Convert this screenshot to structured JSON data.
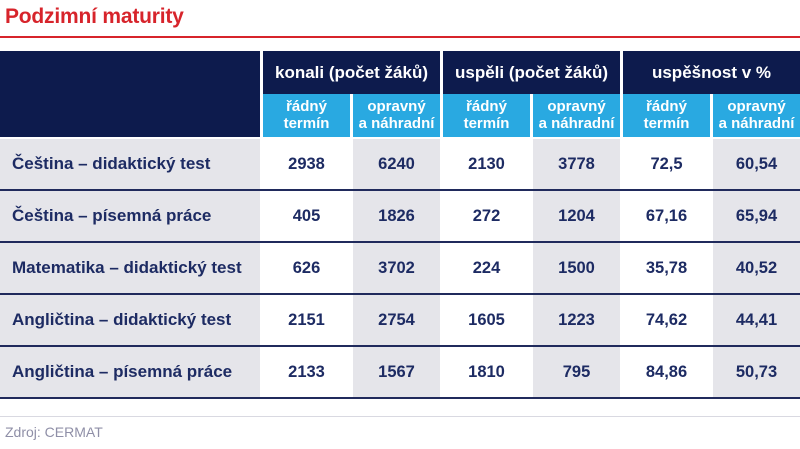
{
  "title": "Podzimní maturity",
  "source": "Zdroj: CERMAT",
  "colors": {
    "accent_red": "#d7242b",
    "header_navy": "#0d1b4d",
    "subheader_cyan": "#29a9e1",
    "text_navy": "#1d2b63",
    "row_shade_gray": "#e5e5ea",
    "source_gray": "#8f8fa7"
  },
  "chart_data": {
    "type": "table",
    "title": "Podzimní maturity",
    "source": "Zdroj: CERMAT",
    "column_groups": [
      {
        "label": "konali (počet žáků)"
      },
      {
        "label": "uspěli (počet žáků)"
      },
      {
        "label": "uspěšnost v %"
      }
    ],
    "sub_headers": [
      {
        "line1": "řádný",
        "line2": "termín",
        "full": "řádný termín"
      },
      {
        "line1": "opravný",
        "line2": "a náhradní",
        "full": "opravný a náhradní"
      }
    ],
    "columns": [
      "konali – řádný termín",
      "konali – opravný a náhradní",
      "uspěli – řádný termín",
      "uspěli – opravný a náhradní",
      "uspěšnost v % – řádný termín",
      "uspěšnost v % – opravný a náhradní"
    ],
    "rows": [
      {
        "label": "Čeština – didaktický test",
        "values": [
          "2938",
          "6240",
          "2130",
          "3778",
          "72,5",
          "60,54"
        ]
      },
      {
        "label": "Čeština – písemná práce",
        "values": [
          "405",
          "1826",
          "272",
          "1204",
          "67,16",
          "65,94"
        ]
      },
      {
        "label": "Matematika – didaktický test",
        "values": [
          "626",
          "3702",
          "224",
          "1500",
          "35,78",
          "40,52"
        ]
      },
      {
        "label": "Angličtina – didaktický test",
        "values": [
          "2151",
          "2754",
          "1605",
          "1223",
          "74,62",
          "44,41"
        ]
      },
      {
        "label": "Angličtina – písemná práce",
        "values": [
          "2133",
          "1567",
          "1810",
          "795",
          "84,86",
          "50,73"
        ]
      }
    ]
  }
}
